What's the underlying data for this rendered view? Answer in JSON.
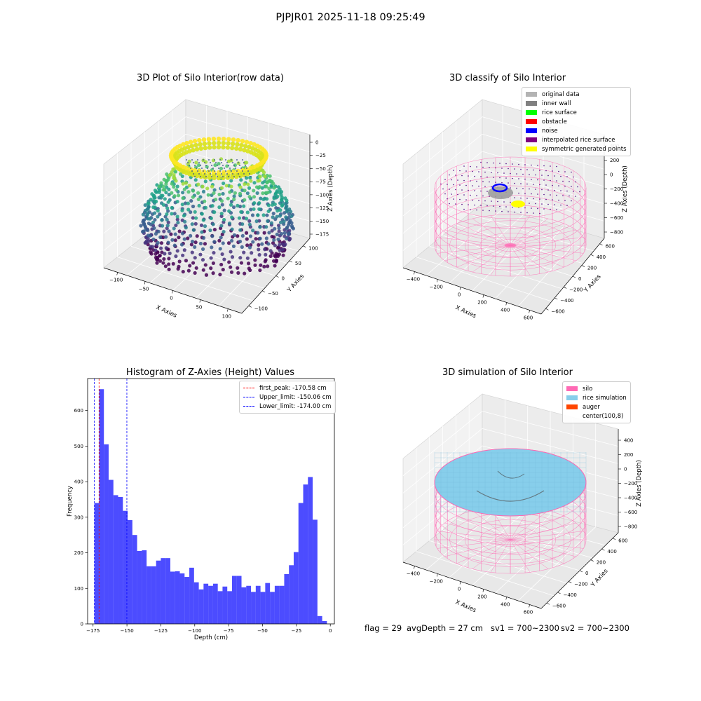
{
  "suptitle": "PJPJR01 2025-11-18 09:25:49",
  "panels": {
    "raw": {
      "title": "3D Plot of Silo Interior(row data)",
      "xlabel": "X Axies",
      "ylabel": "Y Axies",
      "zlabel": "Z Axies (Depth)",
      "xticks": [
        "−100",
        "−50",
        "0",
        "50",
        "100"
      ],
      "yticks": [
        "100",
        "50",
        "0",
        "−50",
        "−100"
      ],
      "zticks": [
        "0",
        "−25",
        "−50",
        "−75",
        "−100",
        "−125",
        "−150",
        "−175"
      ]
    },
    "classify": {
      "title": "3D classify of Silo Interior",
      "xlabel": "X Axies",
      "ylabel": "Y Axies",
      "zlabel": "Z Axies (Depth)",
      "xticks": [
        "−400",
        "−200",
        "0",
        "200",
        "400",
        "600"
      ],
      "yticks": [
        "600",
        "400",
        "200",
        "0",
        "−200",
        "−400",
        "−600"
      ],
      "zticks": [
        "400",
        "200",
        "0",
        "−200",
        "−400",
        "−600",
        "−800"
      ],
      "legend": [
        {
          "label": "original data",
          "color": "#b3b3b3"
        },
        {
          "label": "inner wall",
          "color": "#808080"
        },
        {
          "label": "rice surface",
          "color": "#00ff00"
        },
        {
          "label": "obstacle",
          "color": "#ff0000"
        },
        {
          "label": "noise",
          "color": "#0000ff"
        },
        {
          "label": "interpolated rice surface",
          "color": "#800080"
        },
        {
          "label": "symmetric generated points",
          "color": "#ffff00"
        }
      ]
    },
    "sim": {
      "title": "3D simulation of Silo Interior",
      "xlabel": "X Axies",
      "ylabel": "Y Axies",
      "zlabel": "Z Axies (Depth)",
      "xticks": [
        "−400",
        "−200",
        "0",
        "200",
        "400",
        "600"
      ],
      "yticks": [
        "600",
        "400",
        "200",
        "0",
        "−200",
        "−400",
        "−600"
      ],
      "zticks": [
        "400",
        "200",
        "0",
        "−200",
        "−400",
        "−600",
        "−800"
      ],
      "legend": [
        {
          "label": "silo",
          "color": "#ff69b4"
        },
        {
          "label": "rice simulation",
          "color": "#87ceeb"
        },
        {
          "label": "auger",
          "color": "#ff4500"
        },
        {
          "label": "center(100,8)",
          "color": ""
        }
      ]
    }
  },
  "status": {
    "flag": "flag = 29",
    "avg_depth": "avgDepth = 27 cm",
    "sv1": "sv1 = 700~2300",
    "sv2": "sv2 = 700~2300"
  },
  "chart_data": {
    "type": "bar",
    "title": "Histogram of Z-Axies (Height) Values",
    "xlabel": "Depth (cm)",
    "ylabel": "Frequency",
    "xlim": [
      -179,
      3
    ],
    "ylim": [
      0,
      690
    ],
    "xticks": [
      -175,
      -150,
      -125,
      -100,
      -75,
      -50,
      -25,
      0
    ],
    "yticks": [
      0,
      100,
      200,
      300,
      400,
      500,
      600
    ],
    "bar_color": "#0000ff",
    "bin_start": -174,
    "bin_width": 3.5,
    "values": [
      340,
      660,
      505,
      405,
      362,
      357,
      318,
      292,
      250,
      205,
      207,
      162,
      162,
      178,
      185,
      185,
      147,
      148,
      142,
      132,
      158,
      117,
      97,
      113,
      107,
      113,
      92,
      105,
      92,
      135,
      135,
      103,
      107,
      90,
      107,
      90,
      115,
      90,
      107,
      107,
      140,
      165,
      202,
      340,
      392,
      413,
      293,
      22,
      8
    ],
    "vlines": [
      {
        "label": "first_peak: -170.58 cm",
        "x": -170.58,
        "color": "#ff0000"
      },
      {
        "label": "Upper_limit: -150.06 cm",
        "x": -150.06,
        "color": "#0000ff"
      },
      {
        "label": "Lower_limit: -174.00 cm",
        "x": -174.0,
        "color": "#0000ff"
      }
    ],
    "legend_position": "upper right"
  }
}
